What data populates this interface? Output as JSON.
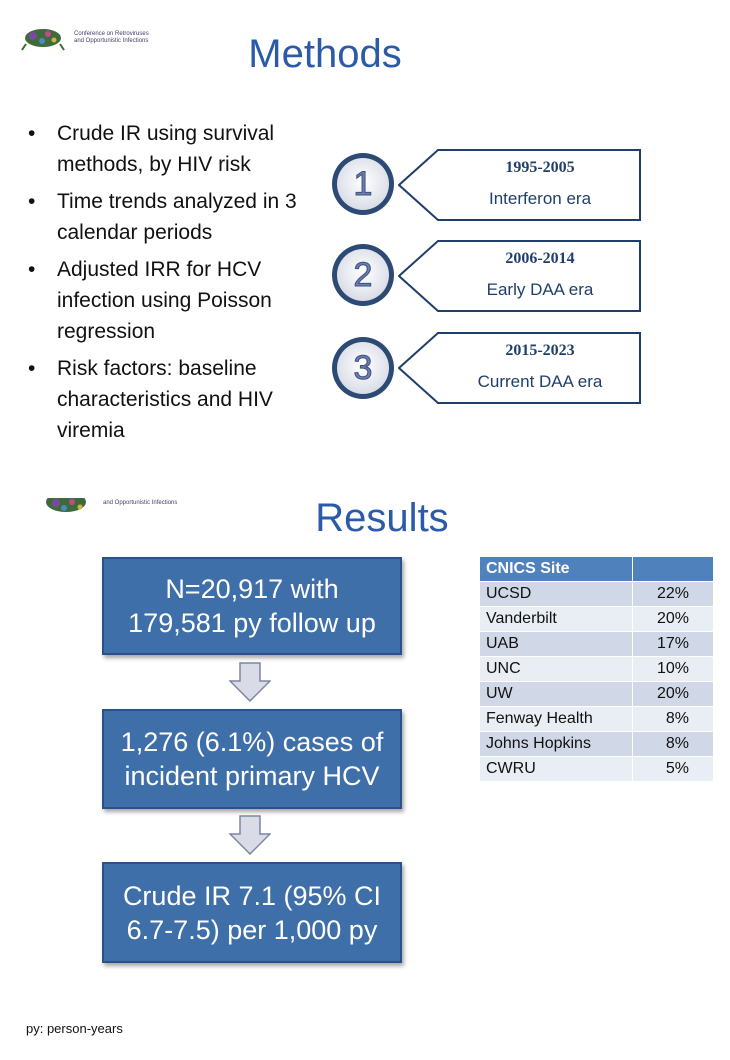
{
  "header_logo_text_top": "Conference on Retroviruses\nand Opportunistic Infections",
  "header_logo_text_mid": "and Opportunistic Infections",
  "methods": {
    "title": "Methods",
    "bullets": [
      "Crude IR using survival methods, by HIV risk",
      "Time trends analyzed in 3 calendar periods",
      "Adjusted IRR for HCV infection using Poisson regression",
      "Risk factors: baseline characteristics and HIV viremia"
    ],
    "periods": [
      {
        "number": "1",
        "years": "1995-2005",
        "era": "Interferon era"
      },
      {
        "number": "2",
        "years": "2006-2014",
        "era": "Early DAA era"
      },
      {
        "number": "3",
        "years": "2015-2023",
        "era": "Current DAA era"
      }
    ]
  },
  "results": {
    "title": "Results",
    "flow": [
      "N=20,917 with 179,581 py follow up",
      "1,276 (6.1%) cases of incident primary HCV",
      "Crude IR 7.1 (95% CI 6.7-7.5) per 1,000 py"
    ],
    "table": {
      "headers": [
        "CNICS Site",
        ""
      ],
      "rows": [
        [
          "UCSD",
          "22%"
        ],
        [
          "Vanderbilt",
          "20%"
        ],
        [
          "UAB",
          "17%"
        ],
        [
          "UNC",
          "10%"
        ],
        [
          "UW",
          "20%"
        ],
        [
          "Fenway Health",
          "8%"
        ],
        [
          "Johns Hopkins",
          "8%"
        ],
        [
          "CWRU",
          "5%"
        ]
      ]
    }
  },
  "footnote": "py: person-years",
  "colors": {
    "title_blue": "#2b5aa8",
    "box_blue": "#3f6fa8",
    "table_header": "#4f81bd",
    "dark_navy": "#1f3f6a"
  }
}
